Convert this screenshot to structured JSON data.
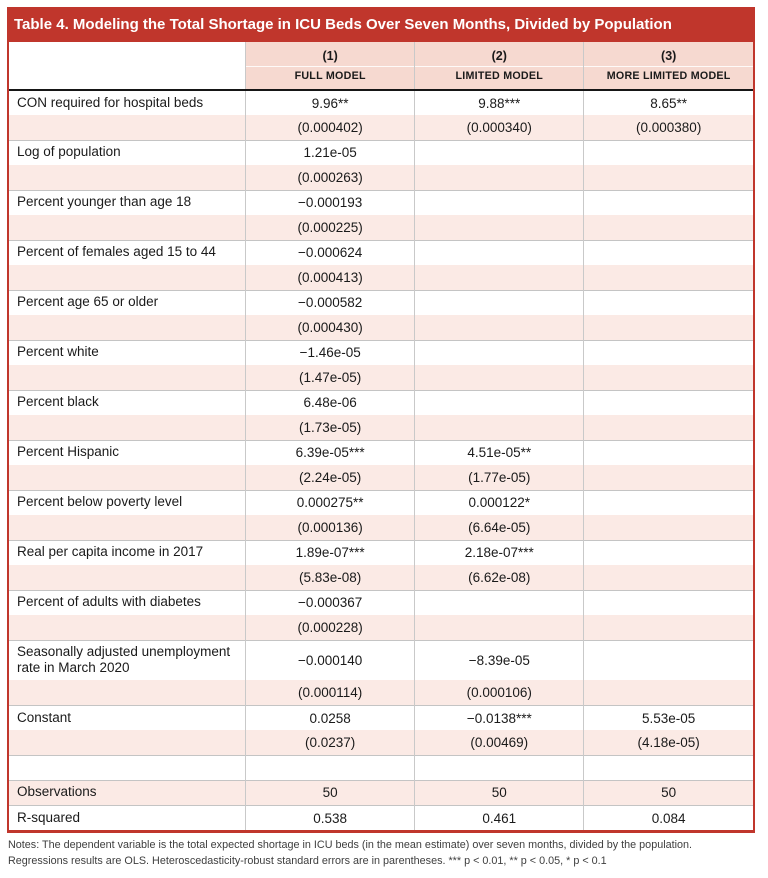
{
  "colors": {
    "accent_red": "#c0362c",
    "header_pink": "#f6d9d0",
    "row_pink": "#fbeae5",
    "header_rule_black": "#161616",
    "grid_gray": "#c9c9c9"
  },
  "table": {
    "title": "Table 4. Modeling the Total Shortage in ICU Beds Over Seven Months, Divided by Population",
    "col_numbers": [
      "(1)",
      "(2)",
      "(3)"
    ],
    "col_models": [
      "FULL MODEL",
      "LIMITED MODEL",
      "MORE LIMITED MODEL"
    ],
    "rows": [
      {
        "label": "CON required for hospital beds",
        "c1": "9.96**",
        "c2": "9.88***",
        "c3": "8.65**"
      },
      {
        "label": "",
        "c1": "(0.000402)",
        "c2": "(0.000340)",
        "c3": "(0.000380)"
      },
      {
        "label": "Log of population",
        "c1": "1.21e-05",
        "c2": "",
        "c3": "",
        "sep": true
      },
      {
        "label": "",
        "c1": "(0.000263)",
        "c2": "",
        "c3": ""
      },
      {
        "label": "Percent younger than age 18",
        "c1": "−0.000193",
        "c2": "",
        "c3": "",
        "sep": true
      },
      {
        "label": "",
        "c1": "(0.000225)",
        "c2": "",
        "c3": ""
      },
      {
        "label": "Percent of females aged 15 to 44",
        "c1": "−0.000624",
        "c2": "",
        "c3": "",
        "sep": true
      },
      {
        "label": "",
        "c1": "(0.000413)",
        "c2": "",
        "c3": ""
      },
      {
        "label": "Percent age 65 or older",
        "c1": "−0.000582",
        "c2": "",
        "c3": "",
        "sep": true
      },
      {
        "label": "",
        "c1": "(0.000430)",
        "c2": "",
        "c3": ""
      },
      {
        "label": "Percent white",
        "c1": "−1.46e-05",
        "c2": "",
        "c3": "",
        "sep": true
      },
      {
        "label": "",
        "c1": "(1.47e-05)",
        "c2": "",
        "c3": ""
      },
      {
        "label": "Percent black",
        "c1": "6.48e-06",
        "c2": "",
        "c3": "",
        "sep": true
      },
      {
        "label": "",
        "c1": "(1.73e-05)",
        "c2": "",
        "c3": ""
      },
      {
        "label": "Percent Hispanic",
        "c1": "6.39e-05***",
        "c2": "4.51e-05**",
        "c3": "",
        "sep": true
      },
      {
        "label": "",
        "c1": "(2.24e-05)",
        "c2": "(1.77e-05)",
        "c3": ""
      },
      {
        "label": "Percent below poverty level",
        "c1": "0.000275**",
        "c2": "0.000122*",
        "c3": "",
        "sep": true
      },
      {
        "label": "",
        "c1": "(0.000136)",
        "c2": "(6.64e-05)",
        "c3": ""
      },
      {
        "label": "Real per capita income in 2017",
        "c1": "1.89e-07***",
        "c2": "2.18e-07***",
        "c3": "",
        "sep": true
      },
      {
        "label": "",
        "c1": "(5.83e-08)",
        "c2": "(6.62e-08)",
        "c3": ""
      },
      {
        "label": "Percent of adults with diabetes",
        "c1": "−0.000367",
        "c2": "",
        "c3": "",
        "sep": true
      },
      {
        "label": "",
        "c1": "(0.000228)",
        "c2": "",
        "c3": ""
      },
      {
        "label": "Seasonally adjusted unemployment rate in March 2020",
        "c1": "−0.000140",
        "c2": "−8.39e-05",
        "c3": "",
        "sep": true
      },
      {
        "label": "",
        "c1": "(0.000114)",
        "c2": "(0.000106)",
        "c3": ""
      },
      {
        "label": "Constant",
        "c1": "0.0258",
        "c2": "−0.0138***",
        "c3": "5.53e-05",
        "sep": true
      },
      {
        "label": "",
        "c1": "(0.0237)",
        "c2": "(0.00469)",
        "c3": "(4.18e-05)"
      },
      {
        "label": "",
        "c1": "",
        "c2": "",
        "c3": "",
        "sep": true
      },
      {
        "label": "Observations",
        "c1": "50",
        "c2": "50",
        "c3": "50",
        "sep": true
      },
      {
        "label": "R-squared",
        "c1": "0.538",
        "c2": "0.461",
        "c3": "0.084",
        "sep": true
      }
    ]
  },
  "notes": "Notes: The dependent variable is the total expected shortage in ICU beds (in the mean estimate) over seven months, divided by the population. Regressions results are OLS. Heteroscedasticity-robust standard errors are in parentheses. *** p < 0.01, ** p < 0.05, * p < 0.1"
}
